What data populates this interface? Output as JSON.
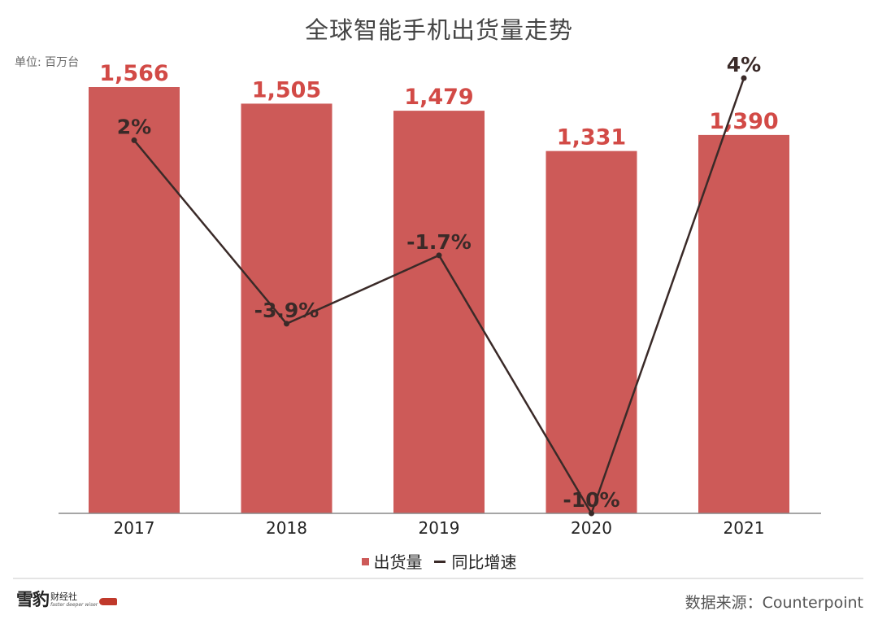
{
  "title": "全球智能手机出货量走势",
  "unit_label": "单位: 百万台",
  "legend": {
    "bar_label": "出货量",
    "line_label": "同比增速"
  },
  "footer": {
    "logo_main": "雪豹",
    "logo_sub": "财经社",
    "logo_tagline": "faster deeper wiser",
    "source": "数据来源：Counterpoint"
  },
  "colors": {
    "bar": "#cd5a58",
    "bar_label": "#d24a46",
    "line": "#3a2a28",
    "axis": "#888888"
  },
  "chart_data": {
    "type": "bar",
    "categories": [
      "2017",
      "2018",
      "2019",
      "2020",
      "2021"
    ],
    "series": [
      {
        "name": "出货量",
        "type": "bar",
        "values": [
          1566,
          1505,
          1479,
          1331,
          1390
        ],
        "labels": [
          "1,566",
          "1,505",
          "1,479",
          "1,331",
          "1,390"
        ]
      },
      {
        "name": "同比增速",
        "type": "line",
        "values": [
          2,
          -3.9,
          -1.7,
          -10,
          4
        ],
        "labels": [
          "2%",
          "-3.9%",
          "-1.7%",
          "-10%",
          "4%"
        ]
      }
    ],
    "title": "全球智能手机出货量走势",
    "ylabel": "单位: 百万台",
    "ylim": [
      0,
      1566
    ],
    "y2lim": [
      -10,
      4
    ],
    "grid": false,
    "legend_position": "bottom"
  }
}
